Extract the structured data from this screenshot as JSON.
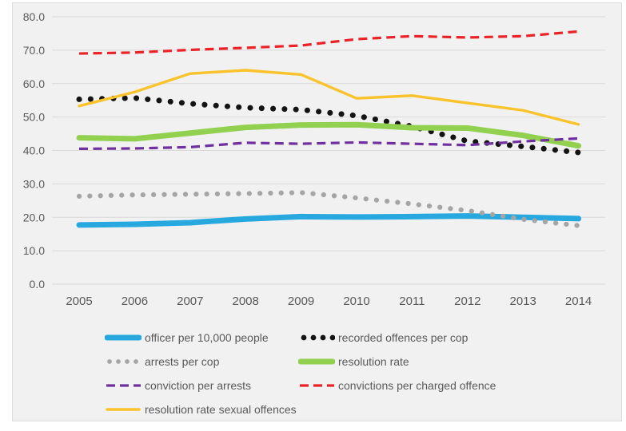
{
  "chart_data": {
    "type": "line",
    "title": "",
    "xlabel": "",
    "ylabel": "",
    "x": [
      "2005",
      "2006",
      "2007",
      "2008",
      "2009",
      "2010",
      "2011",
      "2012",
      "2013",
      "2014"
    ],
    "y_ticks": [
      "80.0",
      "70.0",
      "60.0",
      "50.0",
      "40.0",
      "30.0",
      "20.0",
      "10.0",
      "0.0"
    ],
    "ylim": [
      0,
      80
    ],
    "grid": "horizontal-only",
    "legend_position": "bottom-left-two-columns",
    "plot_background": "#F1F1F1",
    "gridline_color": "#D9D9D9",
    "text_color": "#595959",
    "series": [
      {
        "name": "officer per 10,000 people",
        "color": "#27A9E0",
        "style": "solid-thick",
        "values": [
          17.7,
          17.9,
          18.4,
          19.5,
          20.2,
          20.1,
          20.2,
          20.4,
          20.0,
          19.6
        ]
      },
      {
        "name": "recorded offences per cop",
        "color": "#141414",
        "style": "dotted",
        "values": [
          55.3,
          55.7,
          54.0,
          52.8,
          52.2,
          50.4,
          47.2,
          42.8,
          41.2,
          39.4
        ]
      },
      {
        "name": "arrests per cop",
        "color": "#A5A5A5",
        "style": "dotted-fine",
        "values": [
          26.3,
          26.7,
          26.9,
          27.1,
          27.4,
          25.8,
          24.0,
          22.0,
          19.4,
          17.5
        ]
      },
      {
        "name": "resolution rate",
        "color": "#92D050",
        "style": "solid-thick",
        "values": [
          43.8,
          43.5,
          45.2,
          46.9,
          47.6,
          47.7,
          46.8,
          46.7,
          44.5,
          41.4
        ]
      },
      {
        "name": "conviction per arrests",
        "color": "#7030A0",
        "style": "dashed",
        "values": [
          40.5,
          40.6,
          41.0,
          42.3,
          42.0,
          42.4,
          42.0,
          41.6,
          42.7,
          43.6
        ]
      },
      {
        "name": "convictions per charged offence",
        "color": "#EC2227",
        "style": "dashed",
        "values": [
          69.0,
          69.3,
          70.1,
          70.7,
          71.4,
          73.3,
          74.2,
          73.8,
          74.2,
          75.6
        ]
      },
      {
        "name": "resolution rate sexual offences",
        "color": "#FAC32C",
        "style": "solid-thin",
        "values": [
          53.3,
          57.5,
          63.0,
          64.0,
          62.7,
          55.6,
          56.4,
          54.2,
          52.0,
          47.8
        ]
      }
    ]
  }
}
